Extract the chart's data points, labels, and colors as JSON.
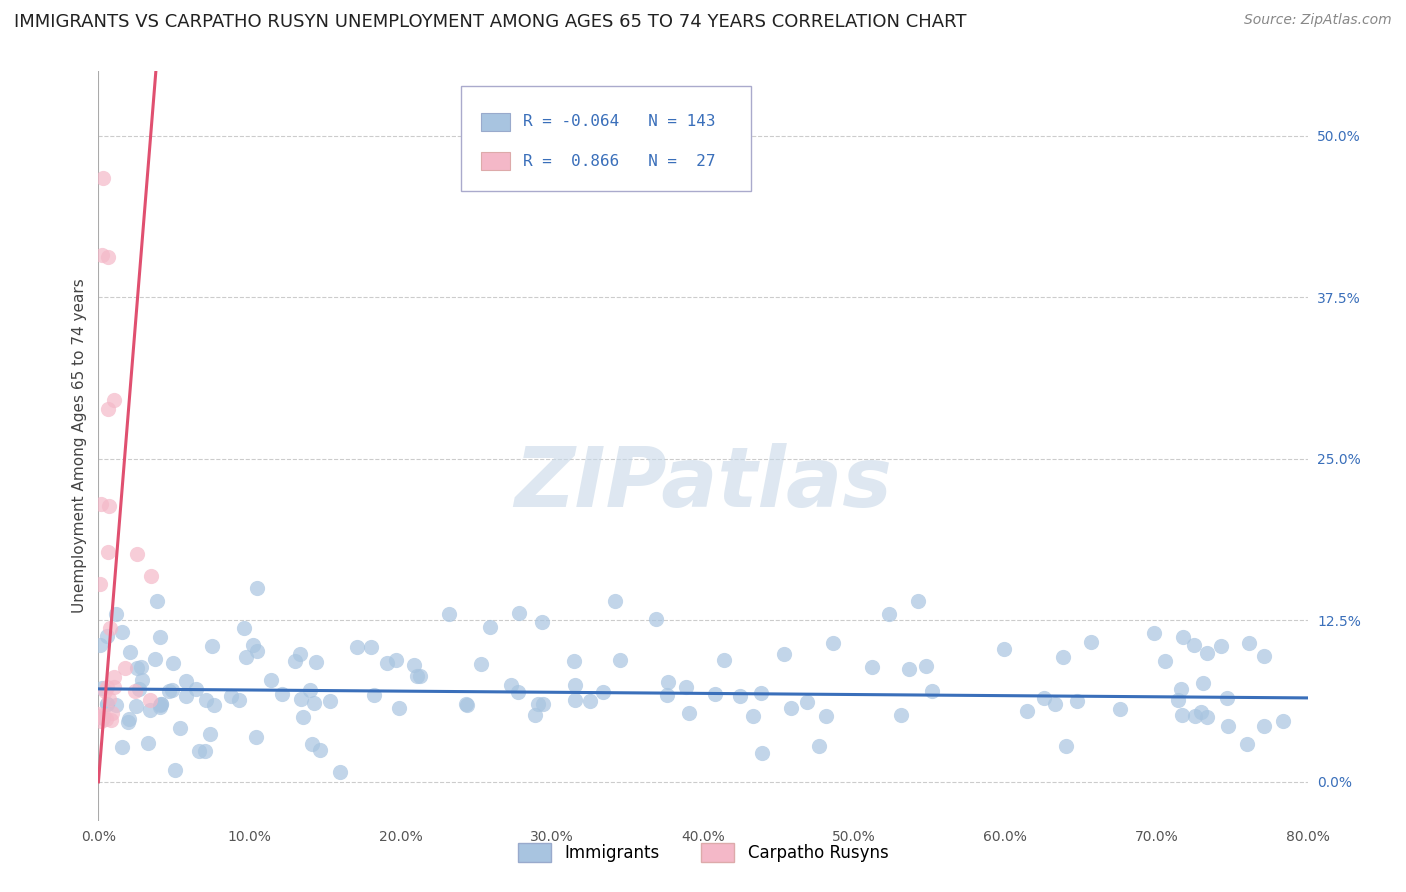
{
  "title": "IMMIGRANTS VS CARPATHO RUSYN UNEMPLOYMENT AMONG AGES 65 TO 74 YEARS CORRELATION CHART",
  "source": "Source: ZipAtlas.com",
  "ylabel": "Unemployment Among Ages 65 to 74 years",
  "xlim": [
    0.0,
    0.8
  ],
  "ylim": [
    -0.03,
    0.55
  ],
  "xticks": [
    0.0,
    0.1,
    0.2,
    0.3,
    0.4,
    0.5,
    0.6,
    0.7,
    0.8
  ],
  "xticklabels": [
    "0.0%",
    "10.0%",
    "20.0%",
    "30.0%",
    "40.0%",
    "50.0%",
    "60.0%",
    "70.0%",
    "80.0%"
  ],
  "yticks_right": [
    0.0,
    0.125,
    0.25,
    0.375,
    0.5
  ],
  "yticklabels_right": [
    "0.0%",
    "12.5%",
    "25.0%",
    "37.5%",
    "50.0%"
  ],
  "immigrants_R": -0.064,
  "immigrants_N": 143,
  "carpatho_R": 0.866,
  "carpatho_N": 27,
  "immigrants_color": "#a8c4e0",
  "immigrants_line_color": "#3a6fba",
  "carpatho_color": "#f4b8c8",
  "carpatho_line_color": "#e05070",
  "background_color": "#ffffff",
  "grid_color": "#cccccc",
  "watermark_color": "#c8d8e8",
  "title_fontsize": 13,
  "source_fontsize": 10,
  "label_fontsize": 11,
  "tick_fontsize": 10,
  "legend_fontsize": 12
}
